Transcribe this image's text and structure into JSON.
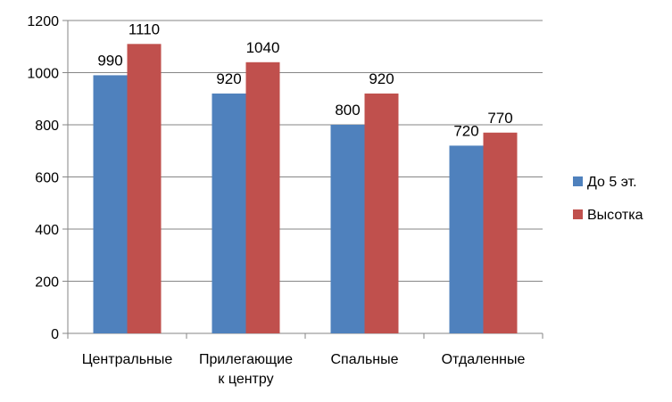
{
  "chart_data": {
    "type": "bar",
    "categories": [
      "Центральные",
      "Прилегающие к центру",
      "Спальные",
      "Отдаленные"
    ],
    "series": [
      {
        "name": "До 5 эт.",
        "values": [
          990,
          920,
          800,
          720
        ],
        "color": "#4F81BD"
      },
      {
        "name": "Высотка",
        "values": [
          1110,
          1040,
          920,
          770
        ],
        "color": "#C0504D"
      }
    ],
    "ylim": [
      0,
      1200
    ],
    "yticks": [
      0,
      200,
      400,
      600,
      800,
      1000,
      1200
    ],
    "grid": true,
    "legend_position": "right",
    "data_labels": true,
    "title": "",
    "xlabel": "",
    "ylabel": ""
  }
}
